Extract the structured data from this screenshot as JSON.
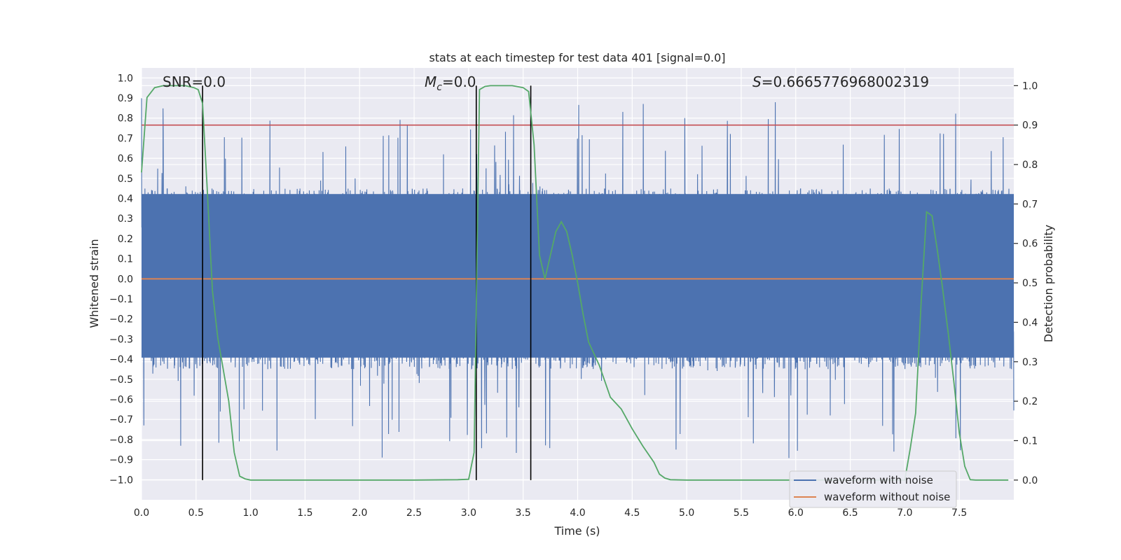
{
  "chart_data": {
    "type": "line",
    "title": "stats at each timestep for test data 401 [signal=0.0]",
    "xlabel": "Time (s)",
    "ylabel": "Whitened strain",
    "ylabel_right": "Detection probability",
    "xlim": [
      0.0,
      8.0
    ],
    "ylim": [
      -1.1,
      1.05
    ],
    "ylim_right": [
      -0.05,
      1.045
    ],
    "x_ticks": [
      "0.0",
      "0.5",
      "1.0",
      "1.5",
      "2.0",
      "2.5",
      "3.0",
      "3.5",
      "4.0",
      "4.5",
      "5.0",
      "5.5",
      "6.0",
      "6.5",
      "7.0",
      "7.5"
    ],
    "y_ticks": [
      "1.0",
      "0.9",
      "0.8",
      "0.7",
      "0.6",
      "0.5",
      "0.4",
      "0.3",
      "0.2",
      "0.1",
      "0.0",
      "−0.1",
      "−0.2",
      "−0.3",
      "−0.4",
      "−0.5",
      "−0.6",
      "−0.7",
      "−0.8",
      "−0.9",
      "−1.0"
    ],
    "y_ticks_right": [
      "1.0",
      "0.9",
      "0.8",
      "0.7",
      "0.6",
      "0.5",
      "0.4",
      "0.3",
      "0.2",
      "0.1",
      "0.0"
    ],
    "annotations": {
      "snr": "SNR=0.0",
      "mc_symbol": "M",
      "mc_sub": "c",
      "mc_value": "=0.0",
      "s_symbol": "S",
      "s_value": "=0.6665776968002319"
    },
    "legend": {
      "placement": "lower-right",
      "entries": [
        "waveform with noise",
        "waveform without noise"
      ]
    },
    "colors": {
      "noise": "#4c72b0",
      "clean": "#dd8452",
      "probability": "#55a868",
      "threshold": "#c44e52",
      "marker": "#000000",
      "axes_bg": "#eaeaf2",
      "grid": "#ffffff"
    },
    "threshold_right": 0.9,
    "vertical_markers_x": [
      0.56,
      3.07,
      3.57
    ],
    "noise_series": {
      "name": "waveform with noise",
      "samples": 4096,
      "duration": 8.0,
      "typical_amplitude": [
        -0.42,
        0.45
      ],
      "peak_range": [
        -1.0,
        0.9
      ]
    },
    "clean_series": {
      "name": "waveform without noise",
      "constant_value": 0.0
    },
    "probability_series": {
      "name": "Detection probability",
      "x": [
        0.0,
        0.05,
        0.12,
        0.2,
        0.3,
        0.4,
        0.48,
        0.52,
        0.56,
        0.6,
        0.65,
        0.7,
        0.75,
        0.8,
        0.85,
        0.9,
        0.95,
        1.0,
        1.5,
        2.0,
        2.5,
        2.9,
        3.0,
        3.05,
        3.1,
        3.15,
        3.2,
        3.3,
        3.4,
        3.5,
        3.55,
        3.6,
        3.65,
        3.7,
        3.75,
        3.8,
        3.85,
        3.9,
        3.95,
        4.0,
        4.05,
        4.1,
        4.2,
        4.3,
        4.4,
        4.5,
        4.6,
        4.7,
        4.75,
        4.8,
        4.85,
        5.0,
        5.5,
        6.0,
        6.5,
        7.0,
        7.05,
        7.1,
        7.15,
        7.2,
        7.25,
        7.3,
        7.35,
        7.4,
        7.45,
        7.5,
        7.55,
        7.6,
        7.65,
        7.7,
        7.8,
        7.95
      ],
      "y": [
        0.78,
        0.97,
        0.995,
        1.0,
        1.0,
        1.0,
        0.995,
        0.99,
        0.955,
        0.75,
        0.48,
        0.36,
        0.28,
        0.2,
        0.07,
        0.01,
        0.003,
        0.0,
        0.0,
        0.0,
        0.0,
        0.001,
        0.002,
        0.07,
        0.99,
        0.998,
        1.0,
        1.0,
        1.0,
        0.995,
        0.985,
        0.85,
        0.57,
        0.51,
        0.57,
        0.63,
        0.655,
        0.63,
        0.57,
        0.5,
        0.42,
        0.35,
        0.29,
        0.21,
        0.18,
        0.13,
        0.085,
        0.045,
        0.015,
        0.005,
        0.001,
        0.0,
        0.0,
        0.0,
        0.0,
        0.0,
        0.08,
        0.17,
        0.45,
        0.68,
        0.67,
        0.58,
        0.48,
        0.37,
        0.25,
        0.12,
        0.035,
        0.001,
        0.0,
        0.0,
        0.0,
        0.0
      ]
    }
  }
}
